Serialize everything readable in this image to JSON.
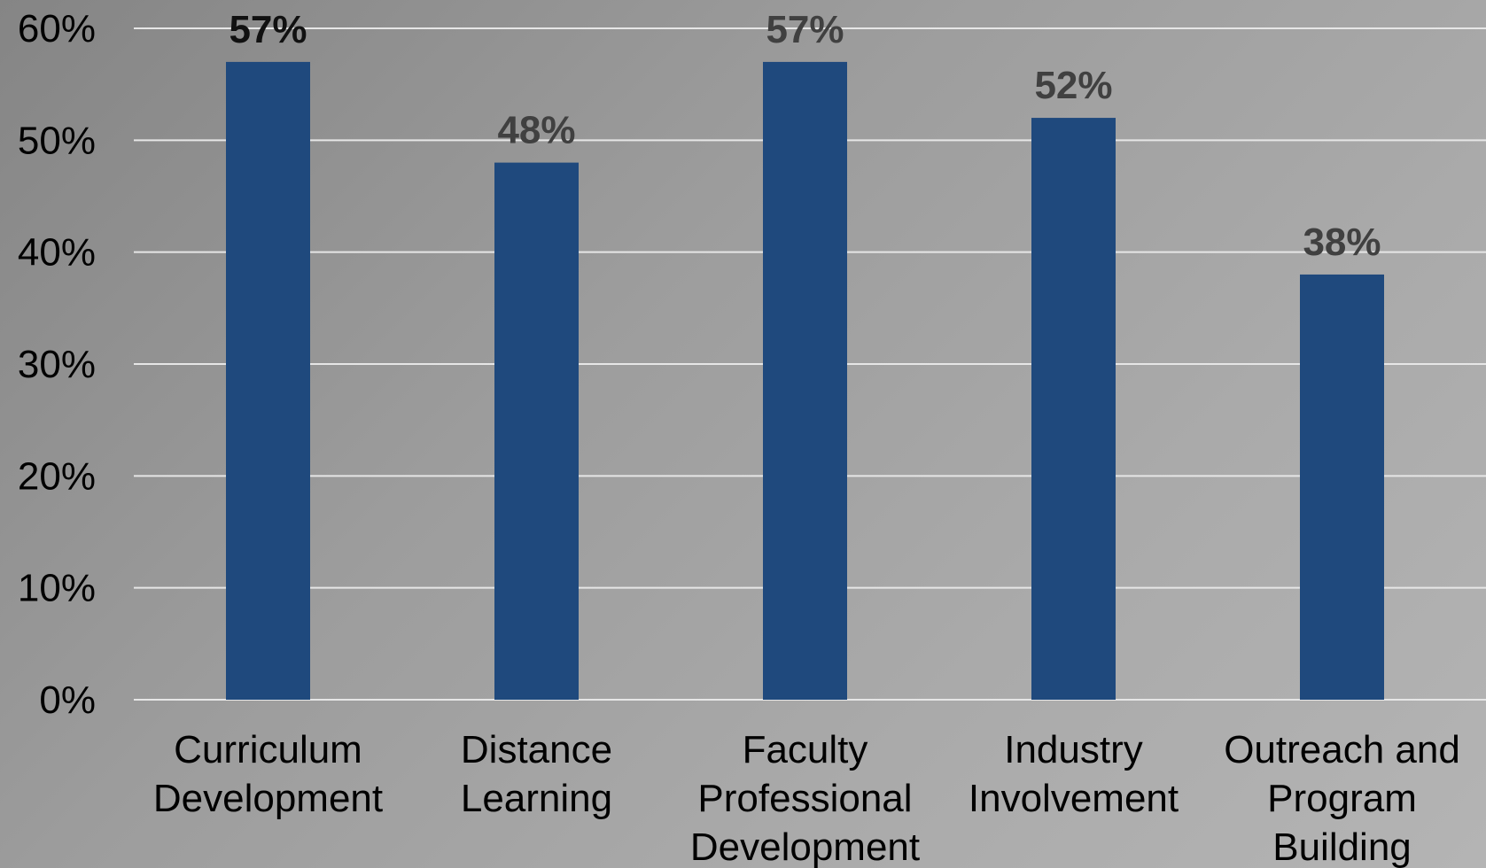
{
  "chart_data": {
    "type": "bar",
    "title": "",
    "xlabel": "",
    "ylabel": "",
    "categories": [
      [
        "Curriculum",
        "Development"
      ],
      [
        "Distance",
        "Learning"
      ],
      [
        "Faculty",
        "Professional",
        "Development"
      ],
      [
        "Industry",
        "Involvement"
      ],
      [
        "Outreach and",
        "Program",
        "Building"
      ]
    ],
    "values": [
      57,
      48,
      57,
      52,
      38
    ],
    "data_labels": [
      "57%",
      "48%",
      "57%",
      "52%",
      "38%"
    ],
    "ylim": [
      0,
      60
    ],
    "y_ticks": [
      0,
      10,
      20,
      30,
      40,
      50,
      60
    ],
    "y_tick_labels": [
      "0%",
      "10%",
      "20%",
      "30%",
      "40%",
      "50%",
      "60%"
    ],
    "grid": true,
    "legend": "none",
    "bar_color": "#1f497d",
    "grid_color": "#e6e6e6"
  }
}
